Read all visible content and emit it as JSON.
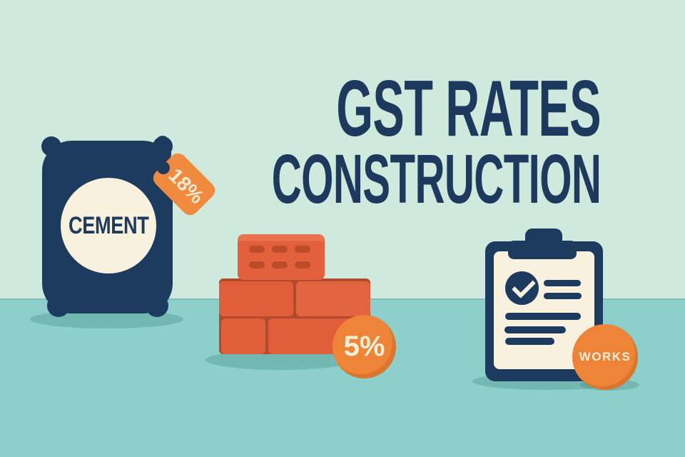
{
  "title": {
    "line1": "GST RATES",
    "line2": "CONSTRUCTION"
  },
  "cement": {
    "bag_label": "CEMENT",
    "tag_label": "18%"
  },
  "bricks": {
    "badge_label": "5%"
  },
  "works_contract": {
    "badge_label": "WORKS"
  },
  "colors": {
    "sky_background": "#cfe9dc",
    "floor_background": "#8ccfcb",
    "navy": "#1d3a5f",
    "cream": "#f8f1de",
    "orange_accent": "#ed8437",
    "brick_red": "#e05f3a",
    "brick_mortar_dark": "#b34a2c",
    "ground_shadow": "rgba(57,134,125,0.30)"
  }
}
